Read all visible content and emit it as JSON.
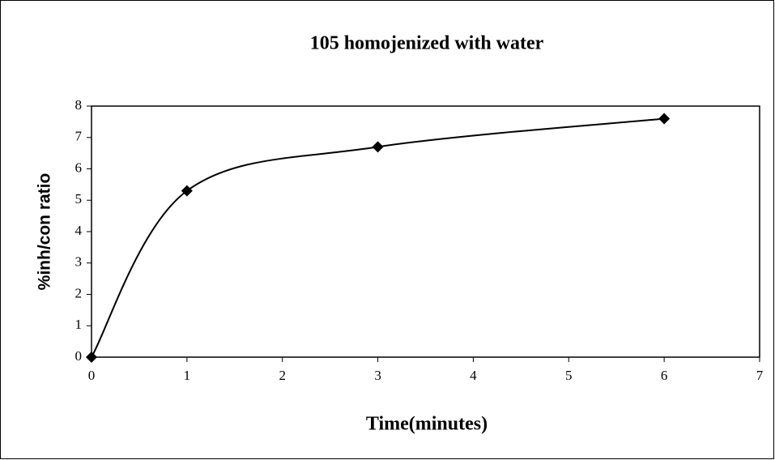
{
  "chart_data": {
    "type": "line",
    "title": "105 homojenized with water",
    "xlabel": "Time(minutes)",
    "ylabel": "%inh/con ratio",
    "x": [
      0,
      1,
      3,
      6
    ],
    "series": [
      {
        "color": "#000000",
        "values": [
          0,
          5.3,
          6.7,
          7.6
        ]
      }
    ],
    "smooth": true,
    "marker": "diamond",
    "xlim": [
      0,
      7
    ],
    "xticks": [
      0,
      1,
      2,
      3,
      4,
      5,
      6,
      7
    ],
    "ylim": [
      0,
      8
    ],
    "yticks": [
      0,
      1,
      2,
      3,
      4,
      5,
      6,
      7,
      8
    ],
    "grid": false
  }
}
